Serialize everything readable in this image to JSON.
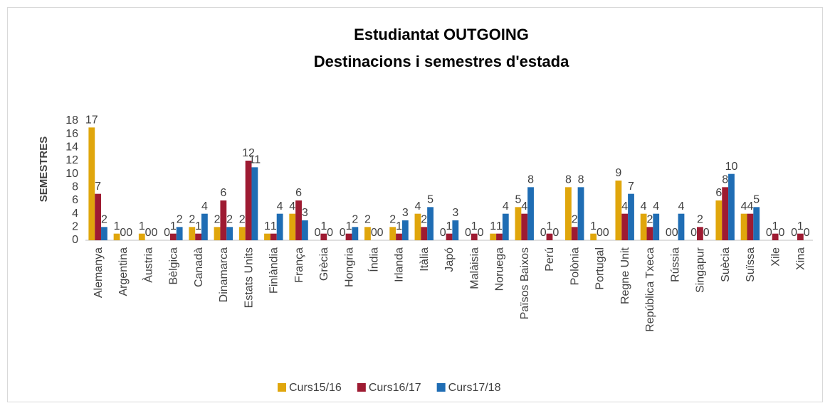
{
  "chart_data": {
    "type": "bar",
    "title": "Estudiantat OUTGOING",
    "subtitle": "Destinacions i semestres d'estada",
    "y_label": "SEMESTRES",
    "categories": [
      "Alemanya",
      "Argentina",
      "Àustria",
      "Bèlgica",
      "Canadà",
      "Dinamarca",
      "Estats Units",
      "Finlàndia",
      "França",
      "Grècia",
      "Hongria",
      "Índia",
      "Irlanda",
      "Itàlia",
      "Japó",
      "Malàisia",
      "Noruega",
      "Països Baixos",
      "Perú",
      "Polònia",
      "Portugal",
      "Regne Unit",
      "República Txeca",
      "Rússia",
      "Singapur",
      "Suècia",
      "Suïssa",
      "Xile",
      "Xina"
    ],
    "series": [
      {
        "name": "Curs15/16",
        "color": "#e0a60c",
        "values": [
          17,
          1,
          1,
          0,
          2,
          2,
          2,
          1,
          4,
          0,
          0,
          2,
          2,
          4,
          0,
          0,
          1,
          5,
          0,
          8,
          1,
          9,
          4,
          0,
          0,
          6,
          4,
          0,
          0
        ]
      },
      {
        "name": "Curs16/17",
        "color": "#9e1b32",
        "values": [
          7,
          0,
          0,
          1,
          1,
          6,
          12,
          1,
          6,
          1,
          1,
          0,
          1,
          2,
          1,
          1,
          1,
          4,
          1,
          2,
          0,
          4,
          2,
          0,
          2,
          8,
          4,
          1,
          1
        ]
      },
      {
        "name": "Curs17/18",
        "color": "#1f6db4",
        "values": [
          2,
          0,
          0,
          2,
          4,
          2,
          11,
          4,
          3,
          0,
          2,
          0,
          3,
          5,
          3,
          0,
          4,
          8,
          0,
          8,
          0,
          7,
          4,
          4,
          0,
          10,
          5,
          0,
          0
        ]
      }
    ],
    "ylim": [
      0,
      18
    ],
    "yticks": [
      0,
      2,
      4,
      6,
      8,
      10,
      12,
      14,
      16,
      18
    ],
    "grid": false,
    "legend": "bottom"
  }
}
